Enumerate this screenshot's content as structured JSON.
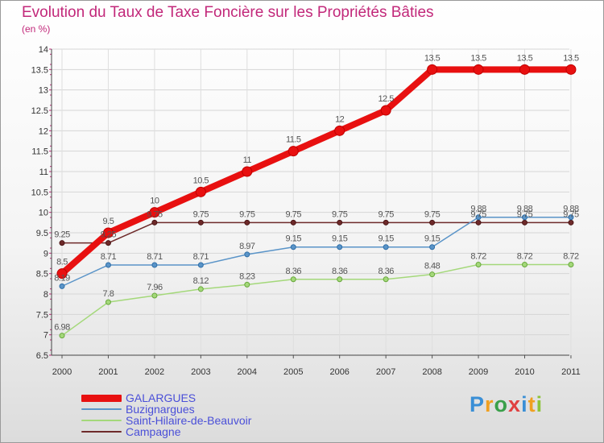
{
  "title": "Evolution du Taux de Taxe Foncière sur les Propriétés Bâties",
  "unit_label": "(en %)",
  "brand": {
    "letters": [
      "P",
      "r",
      "o",
      "x",
      "i",
      "t",
      "i"
    ],
    "colors": [
      "#3a8fd6",
      "#f0a020",
      "#3aa04a",
      "#e04040",
      "#3a8fd6",
      "#f0a020",
      "#8cc43a"
    ]
  },
  "chart_data": {
    "type": "line",
    "title": "Evolution du Taux de Taxe Foncière sur les Propriétés Bâties",
    "ylabel": "(en %)",
    "xlabel": "",
    "ylim": [
      6.5,
      14
    ],
    "yticks": [
      "6.5",
      "7",
      "7.5",
      "8",
      "8.5",
      "9",
      "9.5",
      "10",
      "10.5",
      "11",
      "11.5",
      "12",
      "12.5",
      "13",
      "13.5",
      "14"
    ],
    "x": [
      "2000",
      "2001",
      "2002",
      "2003",
      "2004",
      "2005",
      "2006",
      "2007",
      "2008",
      "2009",
      "2010",
      "2011"
    ],
    "grid": true,
    "legend_position": "bottom-left",
    "series": [
      {
        "name": "GALARGUES",
        "color": "#e81010",
        "marker_stroke": "#c00000",
        "values": [
          8.5,
          9.5,
          10,
          10.5,
          11,
          11.5,
          12,
          12.5,
          13.5,
          13.5,
          13.5,
          13.5
        ],
        "labels": [
          "8.5",
          "9.5",
          "10",
          "10.5",
          "11",
          "11.5",
          "12",
          "12.5",
          "13.5",
          "13.5",
          "13.5",
          "13.5"
        ]
      },
      {
        "name": "Buzignargues",
        "color": "#5a94c8",
        "marker_stroke": "#2f6fa8",
        "values": [
          8.19,
          8.71,
          8.71,
          8.71,
          8.97,
          9.15,
          9.15,
          9.15,
          9.15,
          9.88,
          9.88,
          9.88
        ],
        "labels": [
          "8.19",
          "8.71",
          "8.71",
          "8.71",
          "8.97",
          "9.15",
          "9.15",
          "9.15",
          "9.15",
          "9.88",
          "9.88",
          "9.88"
        ]
      },
      {
        "name": "Saint-Hilaire-de-Beauvoir",
        "color": "#a4d87a",
        "marker_stroke": "#68a83c",
        "values": [
          6.98,
          7.8,
          7.96,
          8.12,
          8.23,
          8.36,
          8.36,
          8.36,
          8.48,
          8.72,
          8.72,
          8.72
        ],
        "labels": [
          "6.98",
          "7.8",
          "7.96",
          "8.12",
          "8.23",
          "8.36",
          "8.36",
          "8.36",
          "8.48",
          "8.72",
          "8.72",
          "8.72"
        ]
      },
      {
        "name": "Campagne",
        "color": "#6e2a2a",
        "marker_stroke": "#4a1515",
        "values": [
          9.25,
          9.25,
          9.75,
          9.75,
          9.75,
          9.75,
          9.75,
          9.75,
          9.75,
          9.75,
          9.75,
          9.75
        ],
        "labels": [
          "9.25",
          "9.25",
          "9.75",
          "9.75",
          "9.75",
          "9.75",
          "9.75",
          "9.75",
          "9.75",
          "9.75",
          "9.75",
          "9.75"
        ]
      }
    ]
  }
}
